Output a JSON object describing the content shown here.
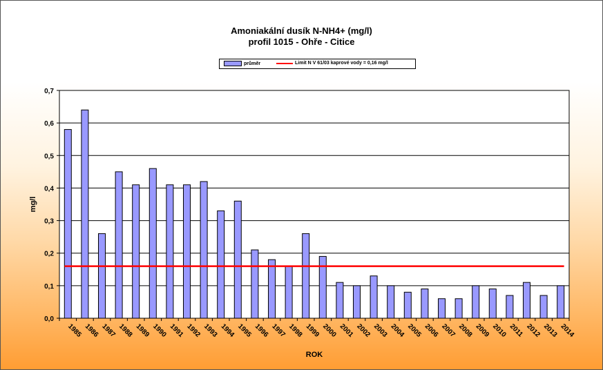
{
  "chart_data": {
    "type": "bar",
    "title": "Amoniakální dusík   N-NH4+ (mg/l)",
    "subtitle": "profil 1015 - Ohře - Citice",
    "xlabel": "ROK",
    "ylabel": "mg/l",
    "ylim": [
      0,
      0.7
    ],
    "yticks": [
      "0,0",
      "0,1",
      "0,2",
      "0,3",
      "0,4",
      "0,5",
      "0,6",
      "0,7"
    ],
    "grid": true,
    "legend_position": "top",
    "categories": [
      "1985",
      "1986",
      "1987",
      "1988",
      "1989",
      "1990",
      "1991",
      "1992",
      "1993",
      "1994",
      "1995",
      "1996",
      "1997",
      "1998",
      "1999",
      "2000",
      "2001",
      "2002",
      "2003",
      "2004",
      "2005",
      "2006",
      "2007",
      "2008",
      "2009",
      "2010",
      "2011",
      "2012",
      "2013",
      "2014"
    ],
    "series": [
      {
        "name": "průměr",
        "color": "#9999ff",
        "values": [
          0.58,
          0.64,
          0.26,
          0.45,
          0.41,
          0.46,
          0.41,
          0.41,
          0.42,
          0.33,
          0.36,
          0.21,
          0.18,
          0.16,
          0.26,
          0.19,
          0.11,
          0.1,
          0.13,
          0.1,
          0.08,
          0.09,
          0.06,
          0.06,
          0.1,
          0.09,
          0.07,
          0.11,
          0.07,
          0.1
        ]
      }
    ],
    "reference_line": {
      "name": "Limit N V 61/03 kaprové vody  = 0,16 mg/l",
      "value": 0.16,
      "color": "#ff0000"
    }
  }
}
